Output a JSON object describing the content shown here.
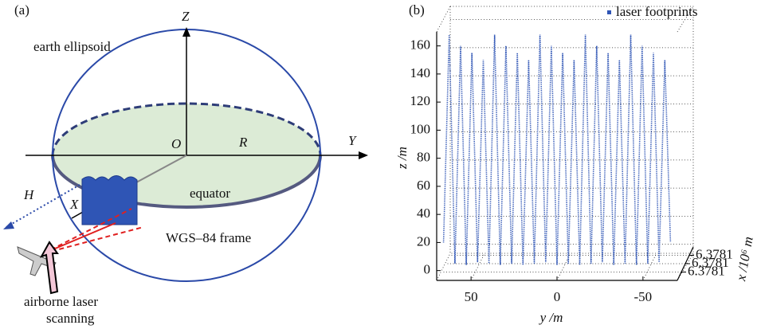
{
  "diagram": {
    "panel_label": "(a)",
    "axis_z": "Z",
    "axis_y": "Y",
    "axis_x": "X",
    "origin": "O",
    "radius": "R",
    "height": "H",
    "ellipsoid": "earth ellipsoid",
    "equator": "equator",
    "frame": "WGS–84 frame",
    "scanning_line1": "airborne laser",
    "scanning_line2": "scanning"
  },
  "chart_data": {
    "type": "scatter3d",
    "panel_label": "(b)",
    "x": [
      66,
      62.7,
      59.4,
      56.1,
      52.8,
      49.5,
      46.2,
      42.9,
      39.6,
      36.3,
      33,
      29.7,
      26.4,
      23.1,
      19.8,
      16.5,
      13.2,
      9.9,
      6.6,
      3.3,
      0,
      -3.3,
      -6.6,
      -9.9,
      -13.2,
      -16.5,
      -19.8,
      -23.1,
      -26.4,
      -29.7,
      -33,
      -36.3,
      -39.6,
      -42.9,
      -46.2,
      -49.5,
      -52.8,
      -56.1,
      -59.4,
      -62.7,
      -66
    ],
    "series": [
      {
        "name": "laser footprints",
        "color": "#2f55b5",
        "values": [
          20,
          168,
          5,
          160,
          4,
          155,
          6,
          150,
          5,
          168,
          4,
          160,
          5,
          155,
          4,
          150,
          5,
          168,
          6,
          160,
          4,
          155,
          5,
          150,
          4,
          168,
          5,
          160,
          6,
          155,
          4,
          150,
          5,
          168,
          4,
          160,
          5,
          155,
          6,
          150,
          20
        ]
      }
    ],
    "xlabel": "y /m",
    "ylabel": "z /m",
    "zlabel": "x /10⁶ m",
    "xlim": [
      70,
      -70
    ],
    "xticks": [
      50,
      0,
      -50
    ],
    "ylim": [
      -7,
      170
    ],
    "yticks": [
      0,
      20,
      40,
      60,
      80,
      100,
      120,
      140,
      160
    ],
    "zlim": [
      6.37808,
      6.37812
    ],
    "zticks": [
      {
        "value": 6.37809,
        "label": "6.3781"
      },
      {
        "value": 6.3781,
        "label": "6.3781"
      },
      {
        "value": 6.37811,
        "label": "6.3781"
      }
    ],
    "grid": true
  }
}
